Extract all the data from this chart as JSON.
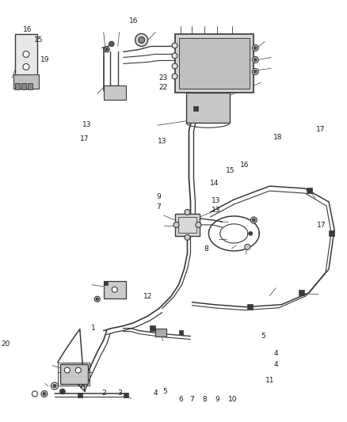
{
  "bg_color": "#ffffff",
  "line_color": "#3a3a3a",
  "label_color": "#1a1a1a",
  "label_fontsize": 6.5,
  "fig_width": 4.38,
  "fig_height": 5.33,
  "dpi": 100
}
